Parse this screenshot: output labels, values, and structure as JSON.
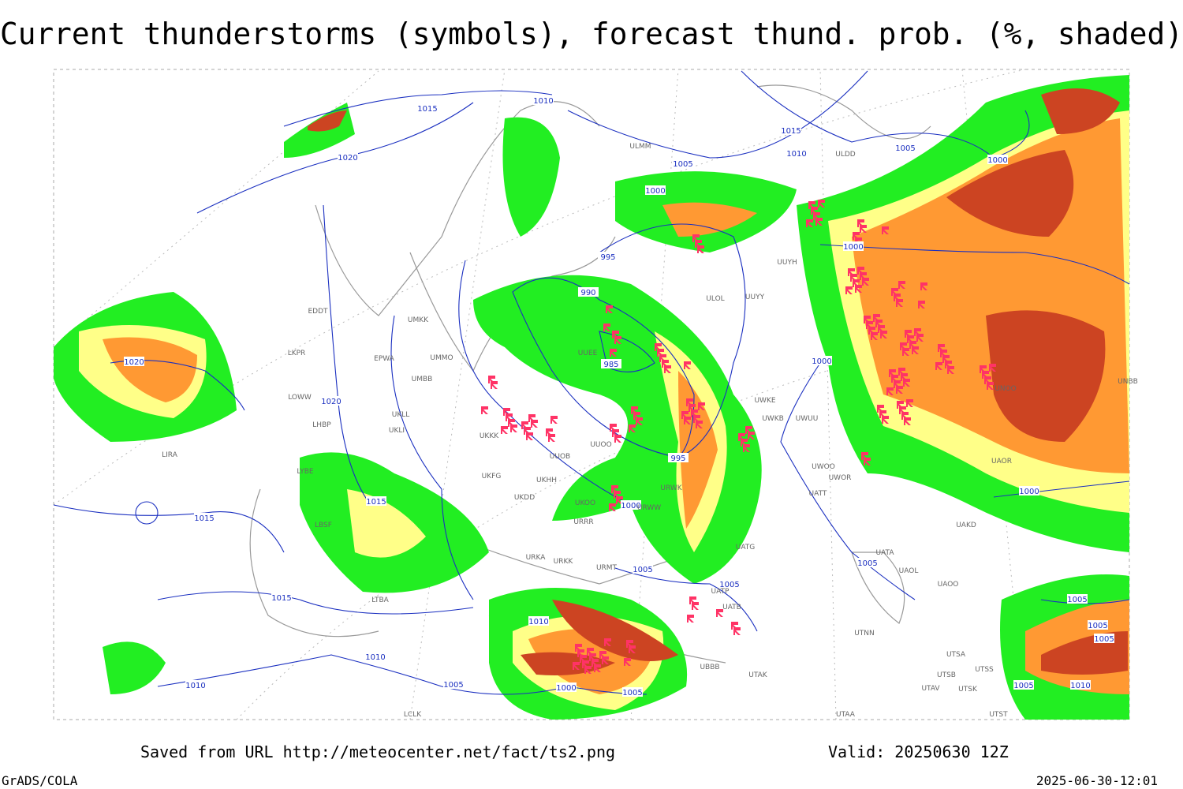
{
  "header": {
    "title": "Current thunderstorms (symbols), forecast thund. prob. (%, shaded)"
  },
  "footer": {
    "source": "Saved from URL http://meteocenter.net/fact/ts2.png",
    "valid": "Valid: 20250630 12Z",
    "software": "GrADS/COLA",
    "timestamp": "2025-06-30-12:01"
  },
  "isobar_labels": [
    "1015",
    "1010",
    "1020",
    "1005",
    "1000",
    "1015",
    "1010",
    "1005",
    "1000",
    "1000",
    "995",
    "990",
    "985",
    "1000",
    "1020",
    "1020",
    "995",
    "1000",
    "1015",
    "1015",
    "1005",
    "1005",
    "1015",
    "1010",
    "1010",
    "1010",
    "1005",
    "1000",
    "1005",
    "1000",
    "1005",
    "1005",
    "1005",
    "1005",
    "1010",
    "1005"
  ],
  "station_labels": [
    "ULMM",
    "ULDD",
    "EDDT",
    "LKPR",
    "EPWA",
    "UMMO",
    "UMKK",
    "UMBB",
    "LOWW",
    "LHBP",
    "UKLL",
    "UKLI",
    "UKKK",
    "UUOO",
    "UUOB",
    "UKHH",
    "UKFG",
    "UKDD",
    "UKOO",
    "URWW",
    "URWK",
    "URRR",
    "UATT",
    "UWOO",
    "UWOR",
    "UWUU",
    "UWKE",
    "UWKB",
    "UUYY",
    "ULOL",
    "UUYH",
    "UATA",
    "UAOL",
    "UAOO",
    "UTNN",
    "UTAK",
    "UTSA",
    "UTSB",
    "UTAV",
    "UTAA",
    "UTST",
    "UTSK",
    "UTSS",
    "UAKD",
    "UAOR",
    "UNOO",
    "UNBB",
    "UUEE",
    "URMT",
    "URKA",
    "URKK",
    "UBBB",
    "UATG",
    "UATB",
    "UATP",
    "LIRA",
    "LYBE",
    "LBSF",
    "LTBA",
    "LCLK"
  ]
}
